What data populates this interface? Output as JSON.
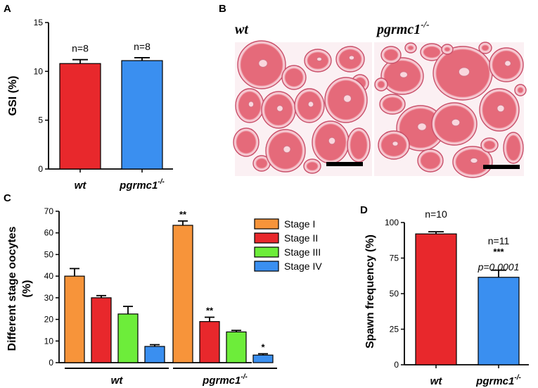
{
  "panels": {
    "A": "A",
    "B": "B",
    "C": "C",
    "D": "D"
  },
  "histology": {
    "wt_label": "wt",
    "ko_label": "pgrmc1",
    "ko_sup": "-/-",
    "section_color": "#e56a7a",
    "background_color": "#fbf0f3"
  },
  "chart_data": [
    {
      "panel": "A",
      "type": "bar",
      "ylabel": "GSI (%)",
      "ylim": [
        0,
        15
      ],
      "yticks": [
        "0",
        "5",
        "10",
        "15"
      ],
      "categories": [
        {
          "label": "wt",
          "sup": ""
        },
        {
          "label": "pgrmc1",
          "sup": "-/-"
        }
      ],
      "values": [
        10.8,
        11.1
      ],
      "errors": [
        0.4,
        0.3
      ],
      "colors": [
        "#e8282c",
        "#3a8ff0"
      ],
      "annotations": [
        "n=8",
        "n=8"
      ]
    },
    {
      "panel": "C",
      "type": "bar",
      "ylabel_lines": [
        "Different stage oocytes",
        "(%)"
      ],
      "ylim": [
        0,
        70
      ],
      "yticks": [
        "0",
        "10",
        "20",
        "30",
        "40",
        "50",
        "60",
        "70"
      ],
      "groups": [
        {
          "label": "wt",
          "sup": ""
        },
        {
          "label": "pgrmc1",
          "sup": "-/-"
        }
      ],
      "series": [
        {
          "name": "Stage I",
          "color": "#f7943a",
          "values": [
            40,
            63.5
          ],
          "errors": [
            3.5,
            2.0
          ],
          "stars": [
            "",
            "**"
          ]
        },
        {
          "name": "Stage II",
          "color": "#e8282c",
          "values": [
            30,
            19
          ],
          "errors": [
            1.0,
            2.0
          ],
          "stars": [
            "",
            "**"
          ]
        },
        {
          "name": "Stage III",
          "color": "#6ded3a",
          "values": [
            22.5,
            14.2
          ],
          "errors": [
            3.5,
            0.7
          ],
          "stars": [
            "",
            ""
          ]
        },
        {
          "name": "Stage IV",
          "color": "#3a8ff0",
          "values": [
            7.5,
            3.5
          ],
          "errors": [
            0.8,
            0.6
          ],
          "stars": [
            "",
            "*"
          ]
        }
      ],
      "legend": "top-right"
    },
    {
      "panel": "D",
      "type": "bar",
      "ylabel": "Spawn frequency (%)",
      "ylim": [
        0,
        100
      ],
      "yticks": [
        "0",
        "25",
        "50",
        "75",
        "100"
      ],
      "categories": [
        {
          "label": "wt",
          "sup": ""
        },
        {
          "label": "pgrmc1",
          "sup": "-/-"
        }
      ],
      "values": [
        92,
        61.5
      ],
      "errors": [
        1.5,
        5
      ],
      "colors": [
        "#e8282c",
        "#3a8ff0"
      ],
      "annotations": [
        "n=10",
        "n=11"
      ],
      "stars": [
        "",
        "***"
      ],
      "pvalue": "p=0.0001"
    }
  ]
}
